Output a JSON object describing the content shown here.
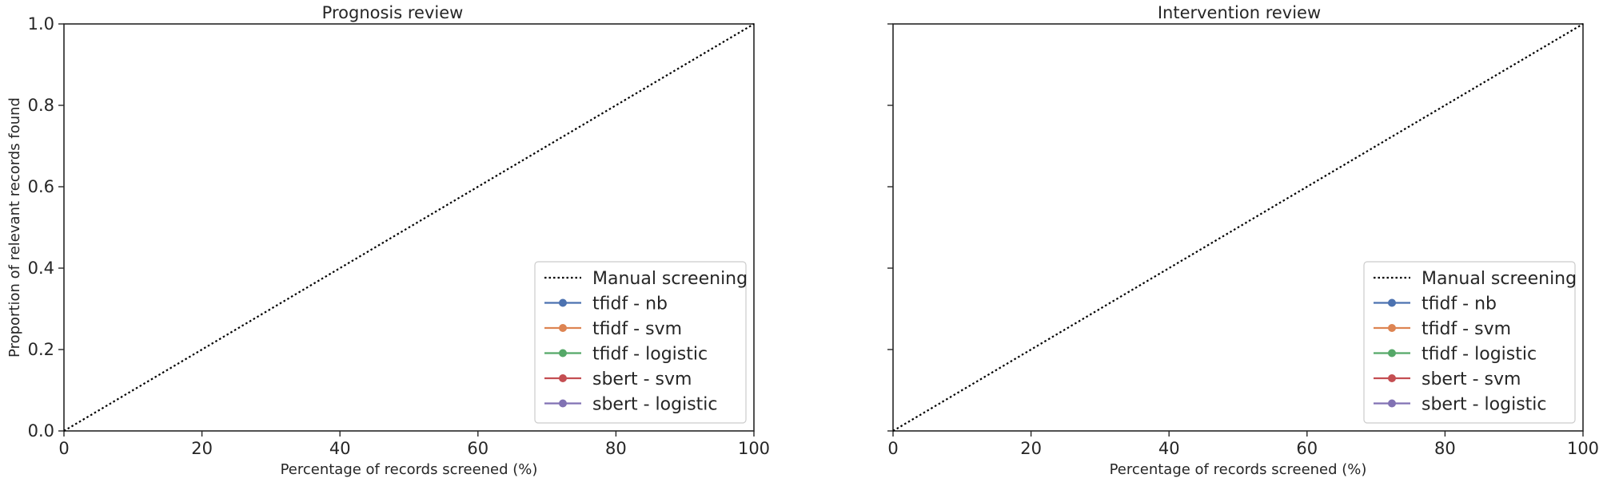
{
  "figure": {
    "subplots": [
      {
        "title": "Prognosis review"
      },
      {
        "title": "Intervention review"
      }
    ]
  },
  "chart_data": [
    {
      "type": "line",
      "title": "Prognosis review",
      "xlabel": "Percentage of records screened (%)",
      "ylabel": "Proportion of relevant records found",
      "xlim": [
        0,
        100
      ],
      "ylim": [
        0,
        1.0
      ],
      "xticks": [
        "0",
        "20",
        "40",
        "60",
        "80",
        "100"
      ],
      "yticks": [
        "0.0",
        "0.2",
        "0.4",
        "0.6",
        "0.8",
        "1.0"
      ],
      "grid": false,
      "legend_position": "bottom-right",
      "series": [
        {
          "name": "Manual screening",
          "style": "dotted",
          "color": "#000000",
          "x": [
            0,
            100
          ],
          "y": [
            0,
            1.0
          ]
        },
        {
          "name": "tfidf - nb",
          "style": "solid-marker",
          "color": "#4c72b0",
          "x": [],
          "y": []
        },
        {
          "name": "tfidf - svm",
          "style": "solid-marker",
          "color": "#dd8452",
          "x": [],
          "y": []
        },
        {
          "name": "tfidf - logistic",
          "style": "solid-marker",
          "color": "#55a868",
          "x": [],
          "y": []
        },
        {
          "name": "sbert - svm",
          "style": "solid-marker",
          "color": "#c44e52",
          "x": [],
          "y": []
        },
        {
          "name": "sbert - logistic",
          "style": "solid-marker",
          "color": "#8172b3",
          "x": [],
          "y": []
        }
      ]
    },
    {
      "type": "line",
      "title": "Intervention review",
      "xlabel": "Percentage of records screened (%)",
      "ylabel": "",
      "xlim": [
        0,
        100
      ],
      "ylim": [
        0,
        1.0
      ],
      "xticks": [
        "0",
        "20",
        "40",
        "60",
        "80",
        "100"
      ],
      "yticks": [],
      "grid": false,
      "legend_position": "bottom-right",
      "series": [
        {
          "name": "Manual screening",
          "style": "dotted",
          "color": "#000000",
          "x": [
            0,
            100
          ],
          "y": [
            0,
            1.0
          ]
        },
        {
          "name": "tfidf - nb",
          "style": "solid-marker",
          "color": "#4c72b0",
          "x": [],
          "y": []
        },
        {
          "name": "tfidf - svm",
          "style": "solid-marker",
          "color": "#dd8452",
          "x": [],
          "y": []
        },
        {
          "name": "tfidf - logistic",
          "style": "solid-marker",
          "color": "#55a868",
          "x": [],
          "y": []
        },
        {
          "name": "sbert - svm",
          "style": "solid-marker",
          "color": "#c44e52",
          "x": [],
          "y": []
        },
        {
          "name": "sbert - logistic",
          "style": "solid-marker",
          "color": "#8172b3",
          "x": [],
          "y": []
        }
      ]
    }
  ]
}
